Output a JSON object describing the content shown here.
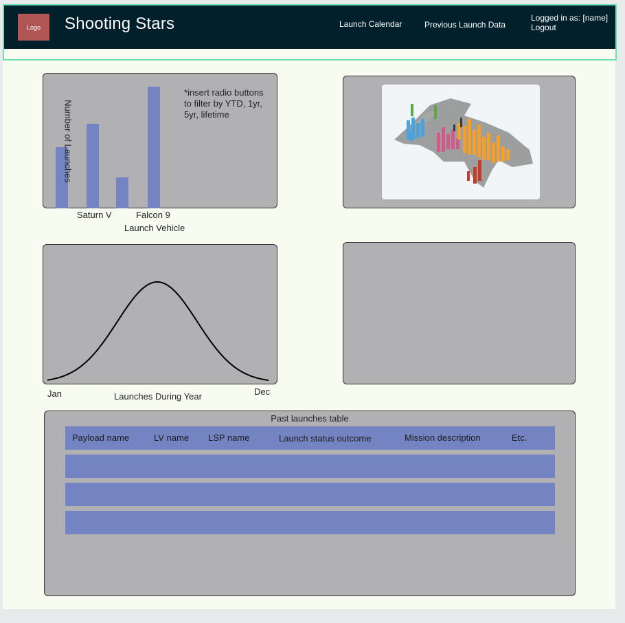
{
  "header": {
    "logo": "Logo",
    "title": "Shooting Stars",
    "nav": [
      "Launch Calendar",
      "Previous Launch Data"
    ],
    "user_line": "Logged in as: [name]",
    "logout": "Logout"
  },
  "bar_chart": {
    "ylabel": "Number of Launches",
    "xlabel": "Launch Vehicle",
    "tick_labels": [
      "Saturn V",
      "Falcon 9"
    ],
    "note": "*insert radio buttons to filter by YTD, 1yr, 5yr, lifetime"
  },
  "chart_data": [
    {
      "type": "bar",
      "categories": [
        "",
        "Saturn V",
        "",
        "Falcon 9"
      ],
      "values": [
        48,
        66,
        24,
        95
      ],
      "xlabel": "Launch Vehicle",
      "ylabel": "Number of Launches",
      "ylim": [
        0,
        100
      ],
      "colors": [
        "#7484c2"
      ]
    },
    {
      "type": "line",
      "x": [
        "Jan",
        "Dec"
      ],
      "xlabel": "Launches During Year",
      "shape": "bell curve",
      "color": "#000000"
    }
  ],
  "line_chart": {
    "x_start": "Jan",
    "x_end": "Dec",
    "xlabel": "Launches During Year"
  },
  "table": {
    "title": "Past launches table",
    "columns": [
      "Payload name",
      "LV name",
      "LSP name",
      "Launch status outcome",
      "Mission description",
      "Etc."
    ],
    "empty_rows": 3
  },
  "colors": {
    "header_bg": "#02202c",
    "logo_bg": "#b05654",
    "panel_bg": "#b1b1b3",
    "bar": "#7484c2",
    "page_bg": "#f8fbf0"
  }
}
